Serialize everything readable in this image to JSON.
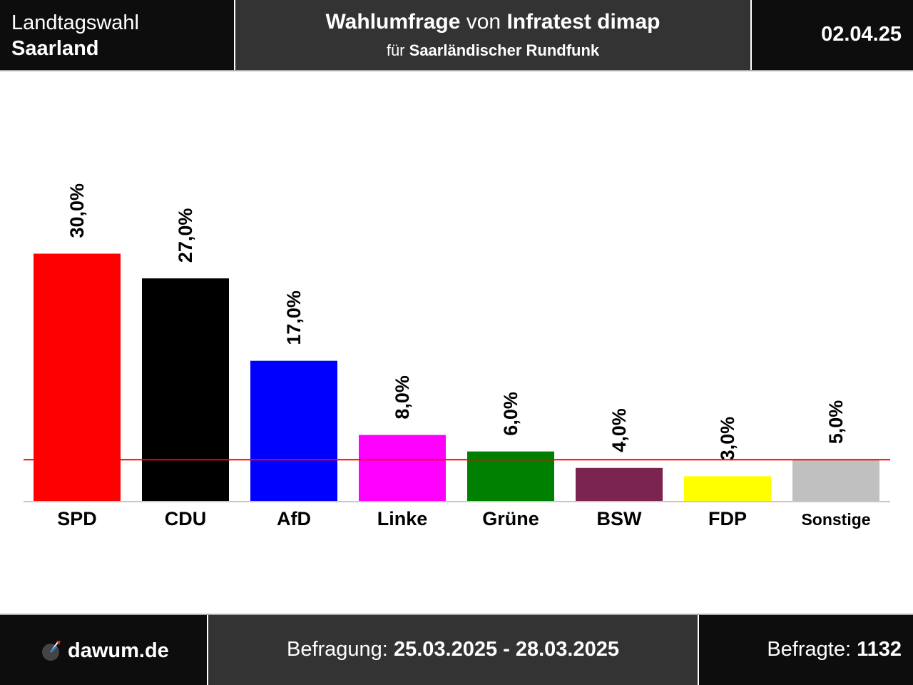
{
  "header": {
    "election_label": "Landtagswahl",
    "region": "Saarland",
    "title_word1": "Wahlumfrage",
    "title_word2": "von",
    "institute": "Infratest dimap",
    "client_prefix": "für",
    "client": "Saarländischer Rundfunk",
    "date": "02.04.25"
  },
  "footer": {
    "site": "dawum.de",
    "survey_label": "Befragung:",
    "survey_period": "25.03.2025 - 28.03.2025",
    "respondents_label": "Befragte:",
    "respondents": "1132"
  },
  "chart_data": {
    "type": "bar",
    "categories": [
      "SPD",
      "CDU",
      "AfD",
      "Linke",
      "Grüne",
      "BSW",
      "FDP",
      "Sonstige"
    ],
    "values": [
      30.0,
      27.0,
      17.0,
      8.0,
      6.0,
      4.0,
      3.0,
      5.0
    ],
    "value_labels": [
      "30,0%",
      "27,0%",
      "17,0%",
      "8,0%",
      "6,0%",
      "4,0%",
      "3,0%",
      "5,0%"
    ],
    "colors": [
      "#ff0000",
      "#000000",
      "#0000ff",
      "#ff00ff",
      "#008000",
      "#7b2450",
      "#ffff00",
      "#c0c0c0"
    ],
    "threshold": 5,
    "threshold_color": "#ff0000",
    "ylim": [
      0,
      30
    ]
  }
}
